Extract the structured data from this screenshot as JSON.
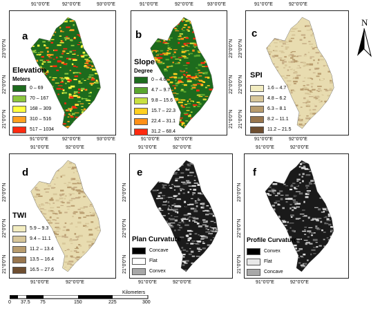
{
  "panels": [
    {
      "id": "a",
      "label": "a",
      "top_ticks": [
        "91°0'0\"E",
        "92°0'0\"E",
        "93°0'0\"E"
      ],
      "bottom_ticks": [
        "91°0'0\"E",
        "92°0'0\"E",
        "93°0'0\"E"
      ],
      "left_ticks": [
        "23°0'0\"N",
        "22°0'0\"N",
        "21°0'0\"N"
      ],
      "legend": {
        "title": "Elevation",
        "subtitle": "Meters",
        "items": [
          {
            "label": "0 – 69",
            "color": "#1d6b1d"
          },
          {
            "label": "70 – 167",
            "color": "#8cc63e"
          },
          {
            "label": "168 – 309",
            "color": "#ffff40"
          },
          {
            "label": "310 – 516",
            "color": "#ffa020"
          },
          {
            "label": "517 – 1034",
            "color": "#ff2a10"
          }
        ]
      },
      "map_palette": [
        "#1d6b1d",
        "#8cc63e",
        "#ffff40",
        "#ffa020",
        "#ff2a10"
      ]
    },
    {
      "id": "b",
      "label": "b",
      "top_ticks": [
        "91°0'0\"E",
        "92°0'0\"E",
        "93°0'0\"E"
      ],
      "bottom_ticks": [
        "91°0'0\"E",
        "92°0'0\"E"
      ],
      "left_ticks": [],
      "right_ticks": [
        "23°0'0\"N",
        "22°0'0\"N",
        "21°0'0\"N"
      ],
      "legend": {
        "title": "Slope",
        "subtitle": "Degree",
        "items": [
          {
            "label": "0 – 4.6",
            "color": "#1d6b1d"
          },
          {
            "label": "4.7 – 9.7",
            "color": "#5aa62e"
          },
          {
            "label": "9.8 – 15.6",
            "color": "#c8e040"
          },
          {
            "label": "15.7 – 22.3",
            "color": "#ffd020"
          },
          {
            "label": "22.4 – 31.1",
            "color": "#ff9018"
          },
          {
            "label": "31.2 – 68.4",
            "color": "#ff2a10"
          }
        ]
      },
      "map_palette": [
        "#1d6b1d",
        "#5aa62e",
        "#c8e040",
        "#ffd020",
        "#ff9018",
        "#ff2a10"
      ]
    },
    {
      "id": "c",
      "label": "c",
      "top_ticks": [
        "91°0'0\"E",
        "92°0'0\"E"
      ],
      "bottom_ticks": [
        "91°0'0\"E",
        "92°0'0\"E"
      ],
      "left_ticks": [
        "23°0'0\"N",
        "22°0'0\"N",
        "21°0'0\"N"
      ],
      "legend": {
        "title": "SPI",
        "subtitle": "",
        "items": [
          {
            "label": "1.6 – 4.7",
            "color": "#f2ecc0"
          },
          {
            "label": "4.8 – 6.2",
            "color": "#d8c79a"
          },
          {
            "label": "6.3 – 8.1",
            "color": "#b89c6e"
          },
          {
            "label": "8.2 – 11.1",
            "color": "#98764e"
          },
          {
            "label": "11.2 – 21.5",
            "color": "#6e4e30"
          }
        ]
      },
      "map_palette": [
        "#e8dcb0",
        "#d8c79a",
        "#c8b088",
        "#b89c6e"
      ]
    },
    {
      "id": "d",
      "label": "d",
      "top_ticks": [
        "91°0'0\"E",
        "92°0'0\"E"
      ],
      "bottom_ticks": [
        "91°0'0\"E",
        "92°0'0\"E"
      ],
      "left_ticks": [
        "23°0'0\"N",
        "22°0'0\"N",
        "21°0'0\"N"
      ],
      "legend": {
        "title": "TWI",
        "subtitle": "",
        "items": [
          {
            "label": "5.9 – 9.3",
            "color": "#f2ecc0"
          },
          {
            "label": "9.4 – 11.1",
            "color": "#d8c79a"
          },
          {
            "label": "11.2 – 13.4",
            "color": "#b89c6e"
          },
          {
            "label": "13.5 – 16.4",
            "color": "#98764e"
          },
          {
            "label": "16.5 – 27.6",
            "color": "#6e4e30"
          }
        ]
      },
      "map_palette": [
        "#e8dcb0",
        "#d8c79a",
        "#c8b088",
        "#b89c6e"
      ]
    },
    {
      "id": "e",
      "label": "e",
      "top_ticks": [
        "91°0'0\"E",
        "92°0'0\"E"
      ],
      "bottom_ticks": [
        "91°0'0\"E",
        "92°0'0\"E"
      ],
      "left_ticks": [
        "23°0'0\"N",
        "22°0'0\"N",
        "21°0'0\"N"
      ],
      "legend": {
        "title": "Plan Curvature",
        "subtitle": "",
        "items": [
          {
            "label": "Concave",
            "color": "#000000"
          },
          {
            "label": "Flat",
            "color": "#ffffff"
          },
          {
            "label": "Convex",
            "color": "#a8a8a8"
          }
        ]
      },
      "map_palette": [
        "#1a1a1a",
        "#6a6a6a",
        "#b0b0b0",
        "#e0e0e0"
      ]
    },
    {
      "id": "f",
      "label": "f",
      "top_ticks": [
        "91°0'0\"E",
        "92°0'0\"E"
      ],
      "bottom_ticks": [
        "91°0'0\"E",
        "92°0'0\"E"
      ],
      "left_ticks": [
        "23°0'0\"N",
        "22°0'0\"N",
        "21°0'0\"N"
      ],
      "legend": {
        "title": "Profile Curvature",
        "subtitle": "",
        "items": [
          {
            "label": "Convex",
            "color": "#000000"
          },
          {
            "label": "Flat",
            "color": "#e8e8e8"
          },
          {
            "label": "Concave",
            "color": "#a8a8a8"
          }
        ]
      },
      "map_palette": [
        "#1a1a1a",
        "#6a6a6a",
        "#b0b0b0",
        "#e0e0e0"
      ]
    }
  ],
  "north_arrow": {
    "label": "N"
  },
  "scale_bar": {
    "unit": "Kilometers",
    "ticks": [
      "0",
      "37.5",
      "75",
      "150",
      "225",
      "300"
    ]
  }
}
